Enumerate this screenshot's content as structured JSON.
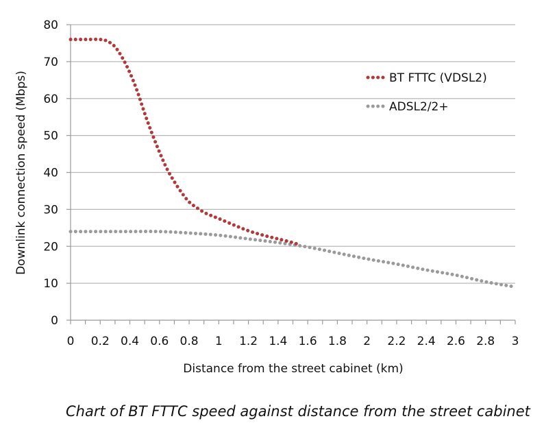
{
  "chart_data": {
    "type": "line",
    "title": "",
    "xlabel": "Distance from the street cabinet (km)",
    "ylabel": "Downlink connection speed (Mbps)",
    "xlim": [
      0,
      3
    ],
    "ylim": [
      0,
      80
    ],
    "grid": true,
    "legend_position": "top-right",
    "x_ticks": [
      "0",
      "0.2",
      "0.4",
      "0.6",
      "0.8",
      "1",
      "1.2",
      "1.4",
      "1.6",
      "1.8",
      "2",
      "2.2",
      "2.4",
      "2.6",
      "2.8",
      "3"
    ],
    "x_tick_values": [
      0,
      0.2,
      0.4,
      0.6,
      0.8,
      1,
      1.2,
      1.4,
      1.6,
      1.8,
      2,
      2.2,
      2.4,
      2.6,
      2.8,
      3
    ],
    "y_ticks": [
      "0",
      "10",
      "20",
      "30",
      "40",
      "50",
      "60",
      "70",
      "80"
    ],
    "y_tick_values": [
      0,
      10,
      20,
      30,
      40,
      50,
      60,
      70,
      80
    ],
    "series": [
      {
        "name": "BT FTTC (VDSL2)",
        "color": "#b03a3a",
        "x": [
          0,
          0.1,
          0.2,
          0.25,
          0.3,
          0.35,
          0.4,
          0.45,
          0.5,
          0.55,
          0.6,
          0.65,
          0.7,
          0.75,
          0.8,
          0.85,
          0.9,
          0.95,
          1.0,
          1.1,
          1.2,
          1.3,
          1.4,
          1.5,
          1.55
        ],
        "y": [
          76,
          76,
          76,
          75.5,
          74,
          71,
          67,
          62,
          56,
          50.5,
          45.5,
          41,
          37.5,
          34.5,
          32,
          30.5,
          29.2,
          28.3,
          27.5,
          25.8,
          24.2,
          23.0,
          22.0,
          21.0,
          20.3
        ]
      },
      {
        "name": "ADSL2/2+",
        "color": "#9a9a9a",
        "x": [
          0,
          0.2,
          0.4,
          0.6,
          0.8,
          1.0,
          1.2,
          1.4,
          1.6,
          1.8,
          2.0,
          2.2,
          2.4,
          2.6,
          2.8,
          3.0
        ],
        "y": [
          24,
          24,
          24,
          24,
          23.6,
          23,
          22,
          21,
          19.8,
          18.2,
          16.6,
          15.2,
          13.6,
          12.2,
          10.4,
          9
        ]
      }
    ]
  },
  "caption": "Chart of BT FTTC speed against distance from the street cabinet"
}
